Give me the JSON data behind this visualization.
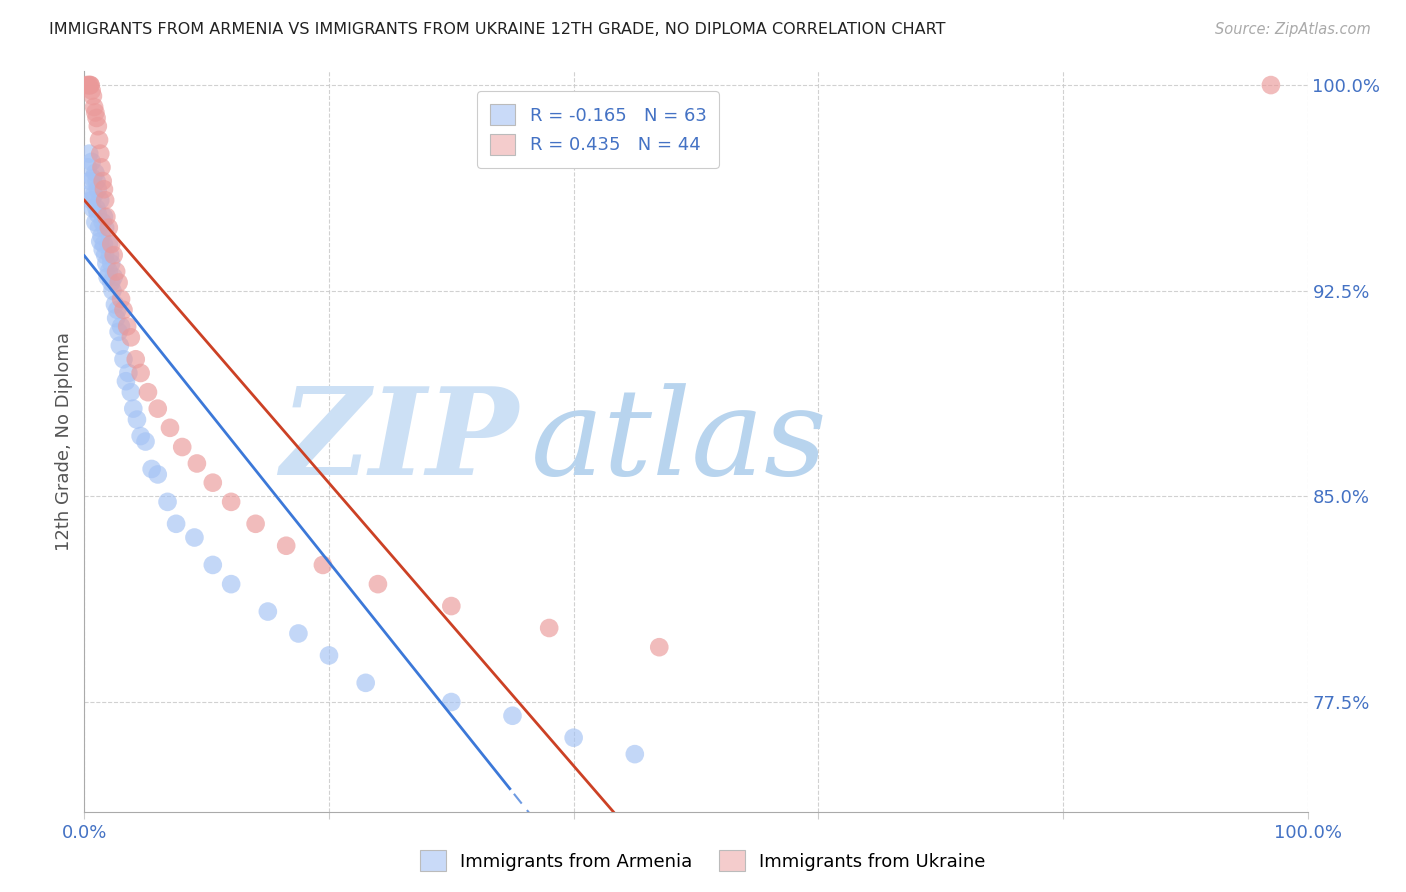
{
  "title": "IMMIGRANTS FROM ARMENIA VS IMMIGRANTS FROM UKRAINE 12TH GRADE, NO DIPLOMA CORRELATION CHART",
  "source": "Source: ZipAtlas.com",
  "ylabel": "12th Grade, No Diploma",
  "xlim": [
    0.0,
    1.0
  ],
  "ylim": [
    0.735,
    1.005
  ],
  "y_ticks": [
    0.775,
    0.85,
    0.925,
    1.0
  ],
  "y_tick_labels": [
    "77.5%",
    "85.0%",
    "92.5%",
    "100.0%"
  ],
  "armenia_R": -0.165,
  "armenia_N": 63,
  "ukraine_R": 0.435,
  "ukraine_N": 44,
  "armenia_color": "#a4c2f4",
  "ukraine_color": "#ea9999",
  "armenia_line_color": "#3c78d8",
  "ukraine_line_color": "#cc4125",
  "background_color": "#ffffff",
  "watermark_color_zip": "#cce0f5",
  "watermark_color_atlas": "#b8d4ee",
  "arm_x": [
    0.002,
    0.003,
    0.004,
    0.005,
    0.006,
    0.006,
    0.007,
    0.007,
    0.008,
    0.009,
    0.009,
    0.01,
    0.01,
    0.011,
    0.011,
    0.012,
    0.013,
    0.013,
    0.014,
    0.015,
    0.015,
    0.016,
    0.016,
    0.017,
    0.017,
    0.018,
    0.019,
    0.02,
    0.02,
    0.021,
    0.022,
    0.022,
    0.023,
    0.024,
    0.025,
    0.026,
    0.027,
    0.028,
    0.029,
    0.03,
    0.032,
    0.034,
    0.036,
    0.038,
    0.04,
    0.043,
    0.046,
    0.05,
    0.055,
    0.06,
    0.068,
    0.075,
    0.09,
    0.105,
    0.12,
    0.15,
    0.175,
    0.2,
    0.23,
    0.3,
    0.35,
    0.4,
    0.45
  ],
  "arm_y": [
    0.96,
    0.97,
    0.975,
    0.965,
    0.958,
    0.972,
    0.966,
    0.955,
    0.96,
    0.95,
    0.968,
    0.955,
    0.965,
    0.953,
    0.962,
    0.948,
    0.958,
    0.943,
    0.945,
    0.95,
    0.94,
    0.942,
    0.952,
    0.938,
    0.948,
    0.935,
    0.93,
    0.942,
    0.932,
    0.938,
    0.928,
    0.935,
    0.925,
    0.93,
    0.92,
    0.915,
    0.918,
    0.91,
    0.905,
    0.912,
    0.9,
    0.892,
    0.895,
    0.888,
    0.882,
    0.878,
    0.872,
    0.87,
    0.86,
    0.858,
    0.848,
    0.84,
    0.835,
    0.825,
    0.818,
    0.808,
    0.8,
    0.792,
    0.782,
    0.775,
    0.77,
    0.762,
    0.756
  ],
  "ukr_x": [
    0.002,
    0.003,
    0.004,
    0.005,
    0.006,
    0.007,
    0.008,
    0.009,
    0.01,
    0.011,
    0.012,
    0.013,
    0.014,
    0.015,
    0.016,
    0.017,
    0.018,
    0.02,
    0.022,
    0.024,
    0.026,
    0.028,
    0.03,
    0.032,
    0.035,
    0.038,
    0.042,
    0.046,
    0.052,
    0.06,
    0.07,
    0.08,
    0.092,
    0.105,
    0.12,
    0.14,
    0.165,
    0.195,
    0.24,
    0.3,
    0.38,
    0.47,
    0.97,
    0.005
  ],
  "ukr_y": [
    1.0,
    1.0,
    1.0,
    1.0,
    0.998,
    0.996,
    0.992,
    0.99,
    0.988,
    0.985,
    0.98,
    0.975,
    0.97,
    0.965,
    0.962,
    0.958,
    0.952,
    0.948,
    0.942,
    0.938,
    0.932,
    0.928,
    0.922,
    0.918,
    0.912,
    0.908,
    0.9,
    0.895,
    0.888,
    0.882,
    0.875,
    0.868,
    0.862,
    0.855,
    0.848,
    0.84,
    0.832,
    0.825,
    0.818,
    0.81,
    0.802,
    0.795,
    1.0,
    1.0
  ]
}
